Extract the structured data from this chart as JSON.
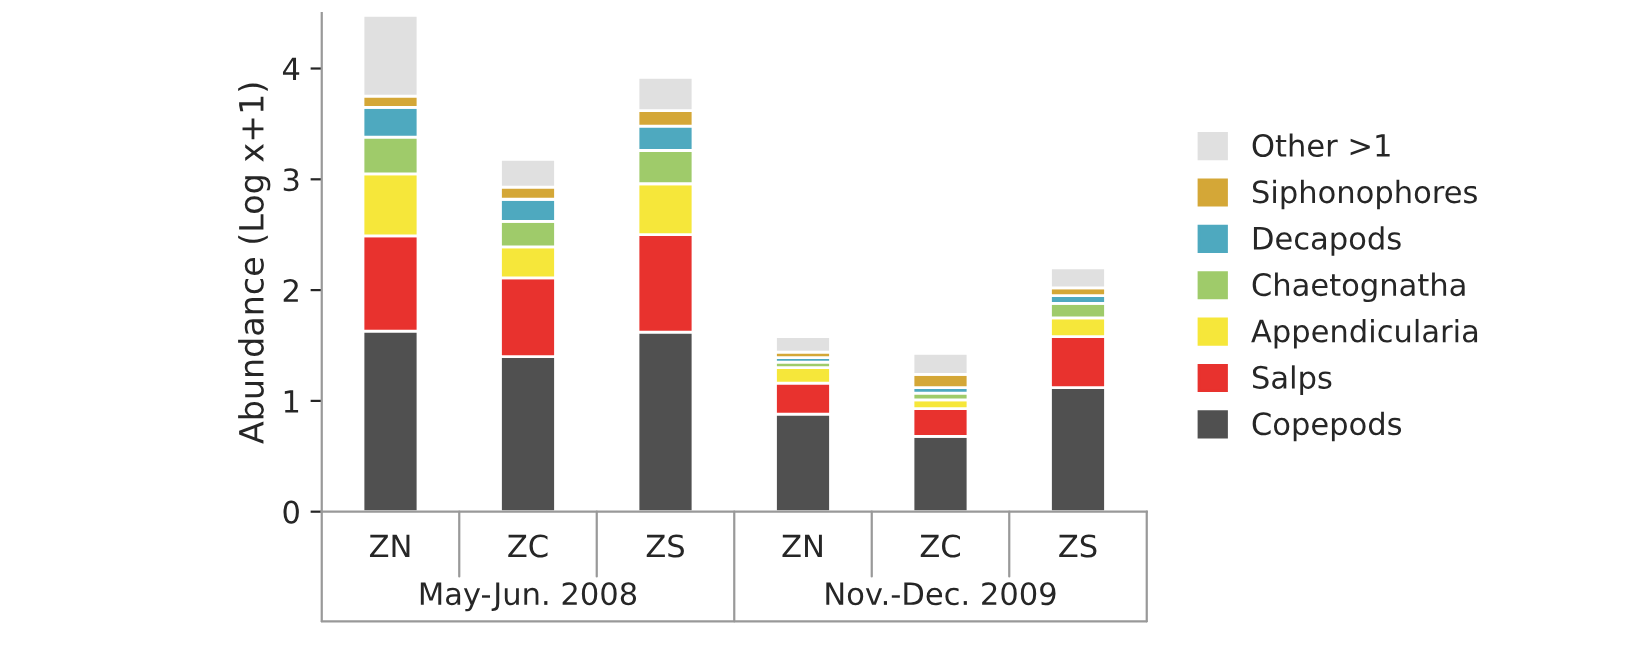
{
  "chart_data": {
    "type": "bar",
    "stacked": true,
    "ylabel": "Abundance (Log x+1)",
    "categories": [
      "ZN",
      "ZC",
      "ZS",
      "ZN",
      "ZC",
      "ZS"
    ],
    "series": [
      {
        "name": "Copepods",
        "color": "#505050",
        "values": [
          1.63,
          1.4,
          1.62,
          0.88,
          0.68,
          1.12
        ]
      },
      {
        "name": "Salps",
        "color": "#e8322e",
        "values": [
          0.86,
          0.71,
          0.88,
          0.28,
          0.25,
          0.46
        ]
      },
      {
        "name": "Appendicularia",
        "color": "#f6e73a",
        "values": [
          0.56,
          0.28,
          0.46,
          0.14,
          0.08,
          0.17
        ]
      },
      {
        "name": "Chaetognatha",
        "color": "#9fcb6a",
        "values": [
          0.33,
          0.23,
          0.3,
          0.05,
          0.06,
          0.13
        ]
      },
      {
        "name": "Decapods",
        "color": "#4ea9bf",
        "values": [
          0.27,
          0.2,
          0.22,
          0.04,
          0.05,
          0.07
        ]
      },
      {
        "name": "Siphonophores",
        "color": "#d4a737",
        "values": [
          0.1,
          0.11,
          0.14,
          0.05,
          0.12,
          0.07
        ]
      },
      {
        "name": "Other >1",
        "color": "#e0e0e0",
        "values": [
          0.73,
          0.25,
          0.3,
          0.14,
          0.19,
          0.18
        ]
      }
    ],
    "ylim": [
      0,
      4.5
    ],
    "yticks": [
      0,
      1,
      2,
      3,
      4
    ],
    "legend": "right",
    "grid": false,
    "annotations": [
      "May-Jun. 2008",
      "Nov.-Dec. 2009"
    ]
  }
}
